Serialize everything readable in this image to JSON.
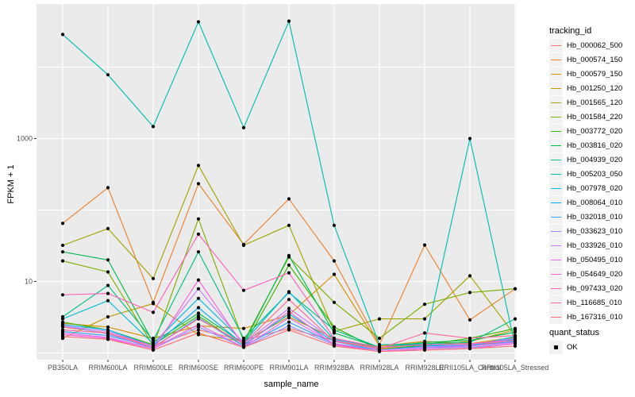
{
  "chart_data": {
    "type": "line",
    "title": "",
    "xlabel": "sample_name",
    "ylabel": "FPKM + 1",
    "y_scale": "log10",
    "ylim": [
      1,
      50000
    ],
    "grid": true,
    "panel_bg": "#EBEBEB",
    "grid_color": "#FFFFFF",
    "tick_label_color": "#4D4D4D",
    "point_color": "#000000",
    "y_ticks": [
      {
        "label": "10",
        "value": 10
      },
      {
        "label": "1000",
        "value": 1000
      }
    ],
    "categories": [
      "PB350LA",
      "RRIM600LA",
      "RRIM600LE",
      "RRIM600SE",
      "RRIM600PE",
      "RRIM901LA",
      "RRIM928BA",
      "RRIM928LA",
      "RRIM928LE",
      "RRII105LA_Control",
      "RRII105LA_Stressed"
    ],
    "legend": {
      "position": "right",
      "tracking_title": "tracking_id",
      "quant_title": "quant_status",
      "quant_items": [
        {
          "label": "OK",
          "color": "#000000"
        }
      ]
    },
    "series": [
      {
        "name": "Hb_000062_500",
        "color": "#F8766D",
        "values": [
          2.3,
          1.9,
          1.25,
          2.1,
          1.5,
          2.2,
          1.5,
          1.15,
          1.25,
          1.3,
          1.45
        ]
      },
      {
        "name": "Hb_000574_150",
        "color": "#EA8331",
        "values": [
          65,
          205,
          5.1,
          233,
          33,
          143,
          19.4,
          1.3,
          32.4,
          2.9,
          7.9
        ]
      },
      {
        "name": "Hb_000579_150",
        "color": "#D89000",
        "values": [
          2.6,
          2.3,
          1.6,
          2.4,
          2.2,
          3.4,
          12.6,
          1.25,
          1.45,
          1.35,
          1.65
        ]
      },
      {
        "name": "Hb_001250_120",
        "color": "#C09B00",
        "values": [
          1.6,
          3.2,
          4.9,
          1.8,
          1.45,
          3.2,
          1.6,
          1.15,
          1.25,
          1.45,
          2.1
        ]
      },
      {
        "name": "Hb_001565_120",
        "color": "#A3A500",
        "values": [
          32,
          55,
          11,
          420,
          32,
          61,
          2.0,
          3.0,
          3.0,
          12,
          1.75
        ]
      },
      {
        "name": "Hb_001584_220",
        "color": "#7CAE00",
        "values": [
          19.4,
          13.6,
          1.25,
          75,
          1.45,
          22,
          5.1,
          1.6,
          4.8,
          7.0,
          7.9
        ]
      },
      {
        "name": "Hb_003772_020",
        "color": "#39B600",
        "values": [
          2.7,
          2.1,
          1.3,
          3.3,
          1.25,
          17,
          2.3,
          1.1,
          1.3,
          1.6,
          2.2
        ]
      },
      {
        "name": "Hb_003816_020",
        "color": "#00BB4E",
        "values": [
          26,
          20,
          1.4,
          3.6,
          1.35,
          23,
          1.9,
          1.2,
          1.4,
          1.5,
          1.95
        ]
      },
      {
        "name": "Hb_004939_020",
        "color": "#00C087",
        "values": [
          3.2,
          8.8,
          1.5,
          26,
          1.6,
          7.0,
          2.1,
          1.2,
          1.35,
          1.4,
          3.0
        ]
      },
      {
        "name": "Hb_005203_050",
        "color": "#00C0AF",
        "values": [
          28600,
          7800,
          1470,
          43000,
          1420,
          44000,
          61,
          1.3,
          1.35,
          1000,
          1.25
        ]
      },
      {
        "name": "Hb_007978_020",
        "color": "#00BCD8",
        "values": [
          3.0,
          5.4,
          1.35,
          5.8,
          1.4,
          7.2,
          1.55,
          1.2,
          1.3,
          1.25,
          1.7
        ]
      },
      {
        "name": "Hb_008064_010",
        "color": "#00B0F6",
        "values": [
          2.5,
          2.1,
          1.25,
          4.3,
          1.3,
          3.5,
          1.45,
          1.1,
          1.25,
          1.3,
          1.55
        ]
      },
      {
        "name": "Hb_032018_010",
        "color": "#35A2FF",
        "values": [
          2.0,
          1.75,
          1.2,
          3.1,
          1.25,
          2.7,
          1.35,
          1.1,
          1.2,
          1.25,
          1.45
        ]
      },
      {
        "name": "Hb_033623_010",
        "color": "#9590FF",
        "values": [
          2.4,
          1.85,
          1.15,
          2.3,
          1.2,
          2.4,
          1.3,
          1.05,
          1.15,
          1.2,
          1.35
        ]
      },
      {
        "name": "Hb_033926_010",
        "color": "#C77CFF",
        "values": [
          2.4,
          2.0,
          1.25,
          7.9,
          1.35,
          4.2,
          1.5,
          1.1,
          1.2,
          1.3,
          1.6
        ]
      },
      {
        "name": "Hb_050495_010",
        "color": "#E76BF3",
        "values": [
          1.9,
          1.65,
          1.15,
          2.5,
          1.2,
          3.1,
          1.35,
          1.05,
          1.15,
          1.25,
          1.4
        ]
      },
      {
        "name": "Hb_054649_020",
        "color": "#FA62DB",
        "values": [
          1.8,
          1.6,
          1.1,
          10.5,
          1.25,
          3.8,
          1.3,
          1.05,
          1.1,
          1.15,
          1.35
        ]
      },
      {
        "name": "Hb_097433_020",
        "color": "#FF62BC",
        "values": [
          6.5,
          6.8,
          3.7,
          46,
          7.5,
          13.2,
          1.6,
          1.2,
          1.3,
          1.35,
          1.5
        ]
      },
      {
        "name": "Hb_116685_010",
        "color": "#FF6A98",
        "values": [
          2.1,
          1.9,
          1.2,
          3.0,
          1.35,
          5.6,
          1.45,
          1.15,
          1.9,
          1.6,
          1.75
        ]
      },
      {
        "name": "Hb_167316_010",
        "color": "#FE6E74",
        "values": [
          1.7,
          1.55,
          1.1,
          1.9,
          1.2,
          2.1,
          1.25,
          1.05,
          1.1,
          1.15,
          1.25
        ]
      }
    ]
  }
}
